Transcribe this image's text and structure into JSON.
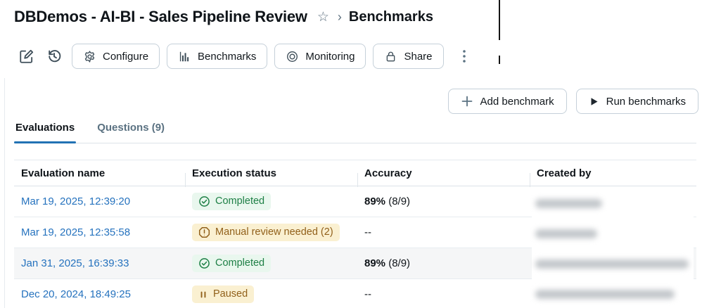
{
  "header": {
    "title": "DBDemos - AI-BI - Sales Pipeline Review",
    "star_icon": "star-outline-icon",
    "breadcrumb_separator": "›",
    "breadcrumb_current": "Benchmarks"
  },
  "toolbar": {
    "edit_icon": "edit-icon",
    "history_icon": "history-icon",
    "buttons": [
      {
        "label": "Configure",
        "icon": "gear-icon"
      },
      {
        "label": "Benchmarks",
        "icon": "bar-chart-icon"
      },
      {
        "label": "Monitoring",
        "icon": "monitor-target-icon"
      },
      {
        "label": "Share",
        "icon": "lock-icon"
      }
    ],
    "kebab_icon": "kebab-menu-icon"
  },
  "actions": {
    "add_benchmark": {
      "label": "Add benchmark",
      "icon": "plus-icon"
    },
    "run_benchmarks": {
      "label": "Run benchmarks",
      "icon": "play-icon"
    }
  },
  "tabs": [
    {
      "label": "Evaluations",
      "active": true
    },
    {
      "label": "Questions (9)",
      "active": false
    }
  ],
  "table": {
    "columns": [
      "Evaluation name",
      "Execution status",
      "Accuracy",
      "Created by"
    ],
    "rows": [
      {
        "name": "Mar 19, 2025, 12:39:20",
        "status": "Completed",
        "status_type": "success",
        "status_icon": "check-circle-icon",
        "accuracy_bold": "89%",
        "accuracy_rest": " (8/9)",
        "created_by_redacted": true,
        "blob_width": 95,
        "striped": false
      },
      {
        "name": "Mar 19, 2025, 12:35:58",
        "status": "Manual review needed (2)",
        "status_type": "warning",
        "status_icon": "alert-octagon-icon",
        "accuracy": "--",
        "created_by_redacted": true,
        "blob_width": 88,
        "striped": false
      },
      {
        "name": "Jan 31, 2025, 16:39:33",
        "status": "Completed",
        "status_type": "success",
        "status_icon": "check-circle-icon",
        "accuracy_bold": "89%",
        "accuracy_rest": " (8/9)",
        "created_by_redacted": true,
        "blob_width": 218,
        "striped": true
      },
      {
        "name": "Dec 20, 2024, 18:49:25",
        "status": "Paused",
        "status_type": "warning",
        "status_icon": "pause-icon",
        "accuracy": "--",
        "created_by_redacted": true,
        "blob_width": 198,
        "striped": false
      }
    ]
  },
  "colors": {
    "link_blue": "#2572BE",
    "tab_accent": "#2272B4",
    "success_text": "#1D7F45",
    "success_bg": "#E9F7EE",
    "warning_text": "#91601A",
    "warning_bg": "#FAF0D1",
    "border": "#DEE4E9",
    "icon": "#3E4E59"
  }
}
